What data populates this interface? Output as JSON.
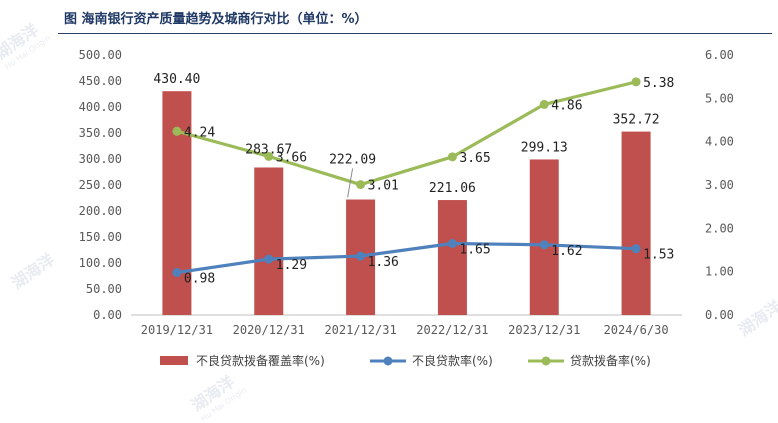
{
  "title": "图  海南银行资产质量趋势及城商行对比（单位：%）",
  "watermark": {
    "text": "湖海洋",
    "sub": "Hu Hai Origin"
  },
  "chart_data": {
    "type": "bar",
    "categories": [
      "2019/12/31",
      "2020/12/31",
      "2021/12/31",
      "2022/12/31",
      "2023/12/31",
      "2024/6/30"
    ],
    "left_axis": {
      "range": [
        0,
        500
      ],
      "step": 50,
      "ticks": [
        "0.00",
        "50.00",
        "100.00",
        "150.00",
        "200.00",
        "250.00",
        "300.00",
        "350.00",
        "400.00",
        "450.00",
        "500.00"
      ]
    },
    "right_axis": {
      "range": [
        0,
        6
      ],
      "step": 1,
      "ticks": [
        "0.00",
        "1.00",
        "2.00",
        "3.00",
        "4.00",
        "5.00",
        "6.00"
      ]
    },
    "series": [
      {
        "name": "不良贷款拨备覆盖率(%)",
        "type": "bar",
        "axis": "left",
        "color": "#c0504d",
        "values": [
          430.4,
          283.67,
          222.09,
          221.06,
          299.13,
          352.72
        ],
        "labels": [
          "430.40",
          "283.67",
          "222.09",
          "221.06",
          "299.13",
          "352.72"
        ]
      },
      {
        "name": "不良贷款率(%)",
        "type": "line",
        "axis": "right",
        "color": "#4f81bd",
        "values": [
          0.98,
          1.29,
          1.36,
          1.65,
          1.62,
          1.53
        ],
        "labels": [
          "0.98",
          "1.29",
          "1.36",
          "1.65",
          "1.62",
          "1.53"
        ]
      },
      {
        "name": "贷款拨备率(%)",
        "type": "line",
        "axis": "right",
        "color": "#9bbb59",
        "values": [
          4.24,
          3.66,
          3.01,
          3.65,
          4.86,
          5.38
        ],
        "labels": [
          "4.24",
          "3.66",
          "3.01",
          "3.65",
          "4.86",
          "5.38"
        ]
      }
    ],
    "legend": [
      "不良贷款拨备覆盖率(%)",
      "不良贷款率(%)",
      "贷款拨备率(%)"
    ],
    "legend_position": "bottom"
  }
}
